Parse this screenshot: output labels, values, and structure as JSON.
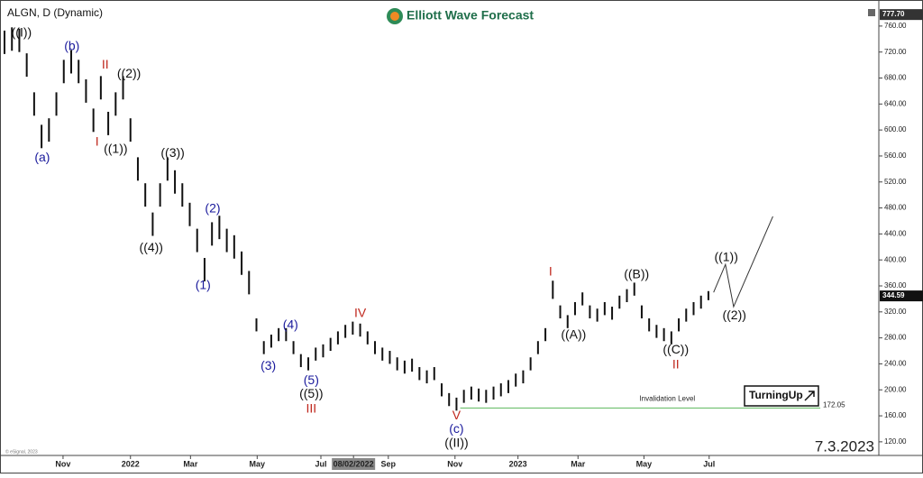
{
  "chart_data": {
    "type": "range_bar",
    "title": "ALGN, D (Dynamic)",
    "logo": "Elliott Wave Forecast",
    "date_stamp": "7.3.2023",
    "brand_badge": "TurningUp",
    "copyright": "© eSignal, 2023",
    "color": "#111111",
    "xlim": [
      0,
      118
    ],
    "ylim": [
      99,
      789
    ],
    "yticks": [
      {
        "value": 120,
        "label": "120.00"
      },
      {
        "value": 160,
        "label": "160.00"
      },
      {
        "value": 200,
        "label": "200.00"
      },
      {
        "value": 240,
        "label": "240.00"
      },
      {
        "value": 280,
        "label": "280.00"
      },
      {
        "value": 320,
        "label": "320.00"
      },
      {
        "value": 360,
        "label": "360.00"
      },
      {
        "value": 400,
        "label": "400.00"
      },
      {
        "value": 440,
        "label": "440.00"
      },
      {
        "value": 480,
        "label": "480.00"
      },
      {
        "value": 520,
        "label": "520.00"
      },
      {
        "value": 560,
        "label": "560.00"
      },
      {
        "value": 600,
        "label": "600.00"
      },
      {
        "value": 640,
        "label": "640.00"
      },
      {
        "value": 680,
        "label": "680.00"
      },
      {
        "value": 720,
        "label": "720.00"
      },
      {
        "value": 760,
        "label": "760.00"
      }
    ],
    "xticks": [
      {
        "value": 7.9,
        "label": "Nov"
      },
      {
        "value": 17,
        "label": "2022"
      },
      {
        "value": 25.1,
        "label": "Mar"
      },
      {
        "value": 34.1,
        "label": "May"
      },
      {
        "value": 42.7,
        "label": "Jul"
      },
      {
        "value": 47.1,
        "label": "08/02/2022"
      },
      {
        "value": 51.8,
        "label": "Sep"
      },
      {
        "value": 60.8,
        "label": "Nov"
      },
      {
        "value": 69.3,
        "label": "2023"
      },
      {
        "value": 77.4,
        "label": "Mar"
      },
      {
        "value": 86.3,
        "label": "May"
      },
      {
        "value": 95.1,
        "label": "Jul"
      }
    ],
    "highlighted_xtick": 5,
    "high": [
      753,
      758,
      756,
      718,
      658,
      608,
      618,
      658,
      708,
      723,
      708,
      678,
      633,
      683,
      628,
      658,
      683,
      618,
      558,
      518,
      473,
      518,
      558,
      538,
      518,
      488,
      448,
      403,
      458,
      468,
      448,
      438,
      413,
      383,
      310,
      275,
      285,
      295,
      295,
      275,
      255,
      250,
      265,
      270,
      280,
      290,
      300,
      305,
      302,
      290,
      275,
      265,
      260,
      250,
      245,
      248,
      235,
      230,
      235,
      210,
      195,
      188,
      200,
      205,
      202,
      200,
      205,
      210,
      215,
      225,
      230,
      250,
      275,
      295,
      368,
      330,
      315,
      335,
      350,
      330,
      325,
      335,
      328,
      345,
      355,
      365,
      330,
      310,
      300,
      295,
      290,
      310,
      325,
      335,
      345,
      352
    ],
    "low": [
      717,
      722,
      720,
      682,
      622,
      572,
      582,
      622,
      672,
      687,
      672,
      642,
      597,
      647,
      592,
      622,
      647,
      582,
      522,
      482,
      437,
      482,
      522,
      502,
      482,
      452,
      412,
      367,
      422,
      432,
      412,
      402,
      377,
      347,
      290,
      255,
      265,
      275,
      275,
      255,
      235,
      230,
      245,
      250,
      260,
      270,
      280,
      285,
      282,
      270,
      255,
      245,
      240,
      230,
      225,
      228,
      215,
      210,
      215,
      190,
      175,
      168,
      180,
      185,
      182,
      180,
      185,
      190,
      195,
      205,
      210,
      230,
      255,
      275,
      340,
      310,
      295,
      315,
      330,
      310,
      305,
      315,
      308,
      325,
      335,
      345,
      310,
      290,
      280,
      275,
      270,
      290,
      305,
      315,
      325,
      338
    ],
    "last_price": {
      "value": 344.59,
      "label": "344.59"
    },
    "top_price": {
      "value": 777.7,
      "label": "777.70"
    },
    "projection": {
      "x": [
        95.7,
        97.3,
        98.4,
        103.7
      ],
      "y": [
        350,
        393,
        328,
        467
      ],
      "color": "#333333"
    },
    "invalidation": {
      "label": "Invalidation Level",
      "value": 172.05,
      "value_label": "172.05",
      "x": [
        61.5,
        110.1
      ],
      "color": "#5cb85c"
    },
    "annotations": [
      {
        "text": "((I))",
        "x": 2.3,
        "y": 749,
        "color": "#111111"
      },
      {
        "text": "(b)",
        "x": 9.1,
        "y": 728,
        "color": "#1a1a9c"
      },
      {
        "text": "(a)",
        "x": 5.1,
        "y": 557,
        "color": "#1a1a9c"
      },
      {
        "text": "II",
        "x": 13.6,
        "y": 700,
        "color": "#c0281e"
      },
      {
        "text": "I",
        "x": 12.5,
        "y": 581,
        "color": "#c0281e"
      },
      {
        "text": "((2))",
        "x": 16.8,
        "y": 686,
        "color": "#111111"
      },
      {
        "text": "((1))",
        "x": 15,
        "y": 570,
        "color": "#111111"
      },
      {
        "text": "((3))",
        "x": 22.7,
        "y": 564,
        "color": "#111111"
      },
      {
        "text": "((4))",
        "x": 19.8,
        "y": 418,
        "color": "#111111"
      },
      {
        "text": "(2)",
        "x": 28.1,
        "y": 478,
        "color": "#1a1a9c"
      },
      {
        "text": "(1)",
        "x": 26.8,
        "y": 360,
        "color": "#1a1a9c"
      },
      {
        "text": "(4)",
        "x": 38.6,
        "y": 299,
        "color": "#1a1a9c"
      },
      {
        "text": "(3)",
        "x": 35.6,
        "y": 236,
        "color": "#1a1a9c"
      },
      {
        "text": "(5)",
        "x": 41.4,
        "y": 214,
        "color": "#1a1a9c"
      },
      {
        "text": "((5))",
        "x": 41.4,
        "y": 193,
        "color": "#111111"
      },
      {
        "text": "III",
        "x": 41.4,
        "y": 170,
        "color": "#c0281e"
      },
      {
        "text": "IV",
        "x": 48,
        "y": 317,
        "color": "#c0281e"
      },
      {
        "text": "V",
        "x": 61,
        "y": 160,
        "color": "#c0281e"
      },
      {
        "text": "(c)",
        "x": 61,
        "y": 139,
        "color": "#1a1a9c"
      },
      {
        "text": "((II))",
        "x": 61,
        "y": 117,
        "color": "#111111"
      },
      {
        "text": "I",
        "x": 73.7,
        "y": 381,
        "color": "#c0281e"
      },
      {
        "text": "((A))",
        "x": 76.8,
        "y": 284,
        "color": "#111111"
      },
      {
        "text": "((B))",
        "x": 85.3,
        "y": 377,
        "color": "#111111"
      },
      {
        "text": "((C))",
        "x": 90.6,
        "y": 261,
        "color": "#111111"
      },
      {
        "text": "II",
        "x": 90.6,
        "y": 238,
        "color": "#c0281e"
      },
      {
        "text": "((1))",
        "x": 97.4,
        "y": 403,
        "color": "#111111"
      },
      {
        "text": "((2))",
        "x": 98.5,
        "y": 314,
        "color": "#111111"
      }
    ]
  }
}
